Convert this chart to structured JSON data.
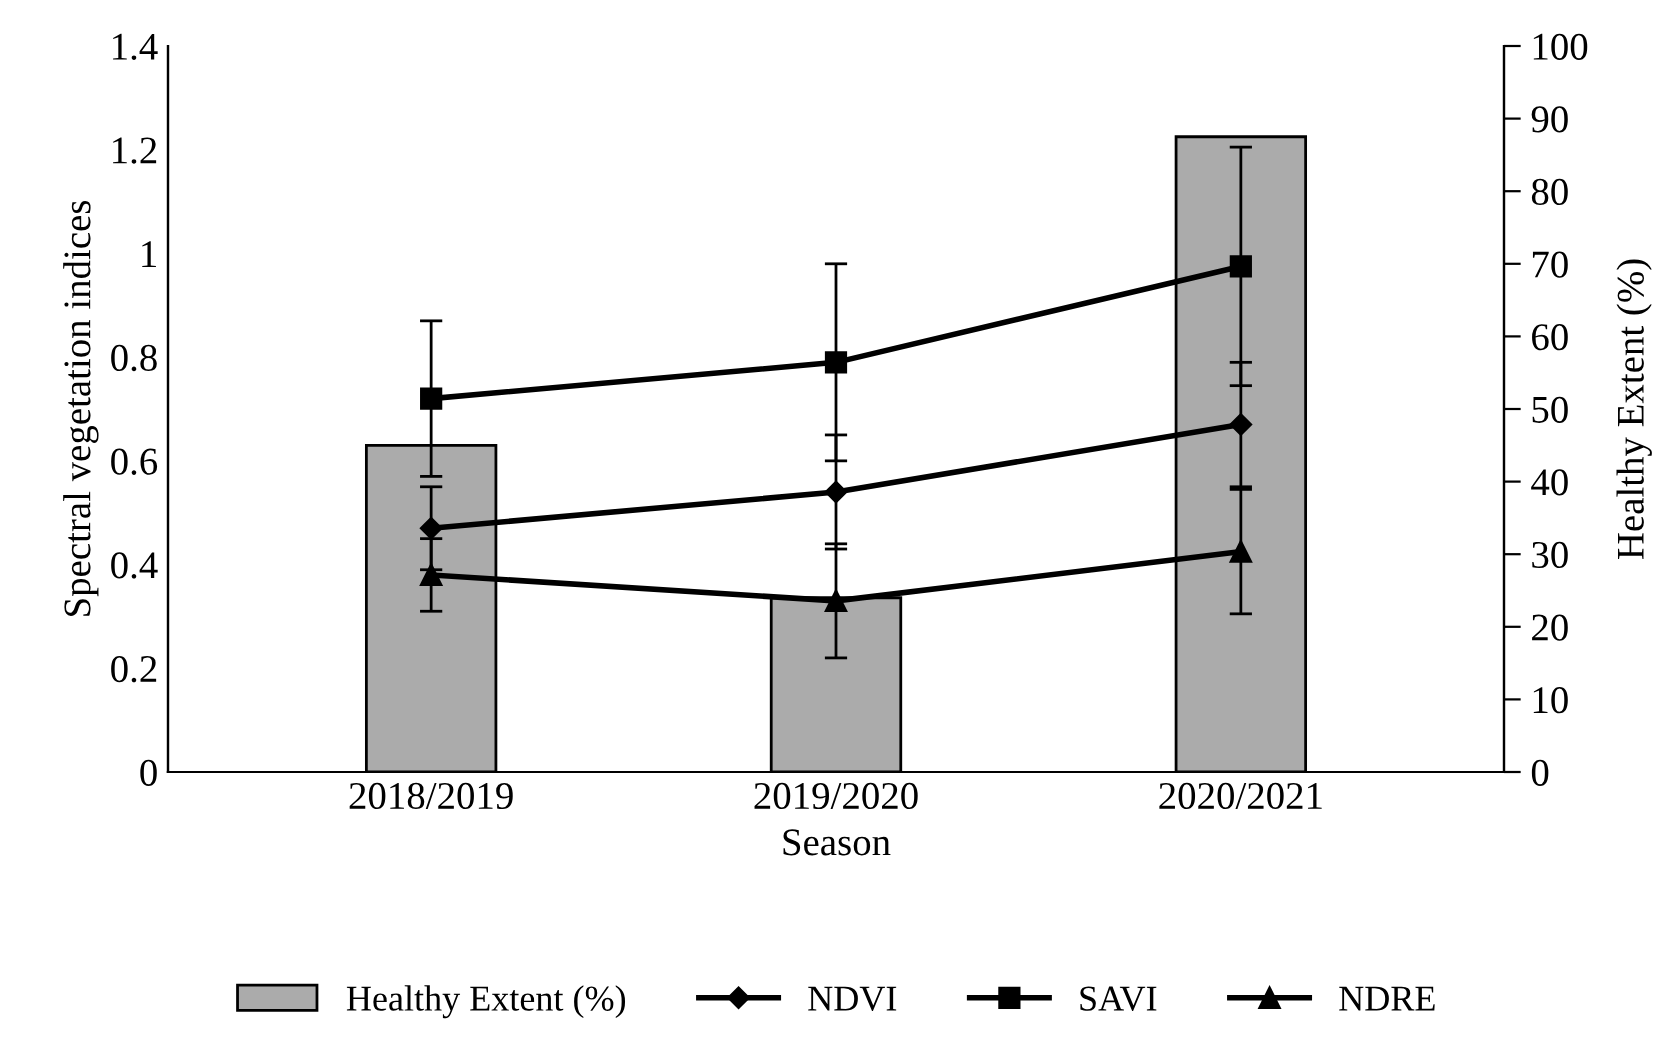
{
  "chart_data": {
    "type": "line",
    "xlabel": "Season",
    "ylabel": "Spectral vegetation indices",
    "y2label": "Healthy Extent (%)",
    "categories": [
      "2018/2019",
      "2019/2020",
      "2020/2021"
    ],
    "ylim": [
      0,
      1.4
    ],
    "yticks": [
      0,
      0.2,
      0.4,
      0.6,
      0.8,
      1,
      1.2,
      1.4
    ],
    "y2lim": [
      0,
      100
    ],
    "y2ticks": [
      0,
      10,
      20,
      30,
      40,
      50,
      60,
      70,
      80,
      90,
      100
    ],
    "legend": "bottom",
    "grid": false,
    "series": [
      {
        "name": "Healthy Extent (%)",
        "type": "bar",
        "axis": "y2",
        "color": "#ababab",
        "values": [
          45,
          24,
          87.5
        ]
      },
      {
        "name": "NDVI",
        "marker": "diamond",
        "color": "#000000",
        "values": [
          0.47,
          0.54,
          0.67
        ],
        "errors": [
          0.08,
          0.11,
          0.12
        ]
      },
      {
        "name": "SAVI",
        "marker": "square",
        "color": "#000000",
        "values": [
          0.72,
          0.79,
          0.975
        ],
        "errors": [
          0.15,
          0.19,
          0.23
        ]
      },
      {
        "name": "NDRE",
        "marker": "triangle",
        "color": "#000000",
        "values": [
          0.38,
          0.33,
          0.425
        ],
        "errors": [
          0.07,
          0.11,
          0.12
        ]
      }
    ]
  }
}
